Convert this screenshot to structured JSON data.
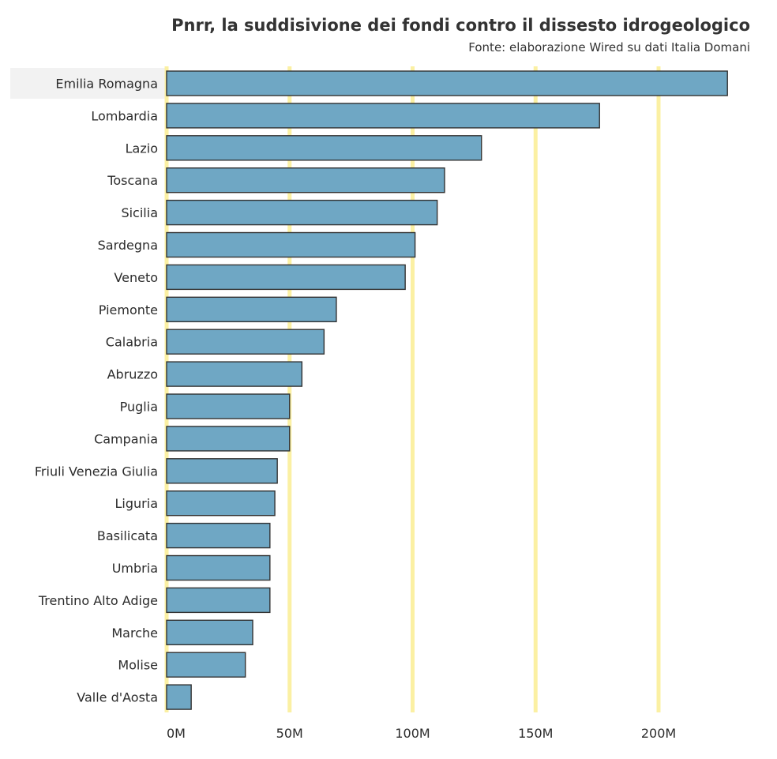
{
  "title": "Pnrr, la suddisivione dei fondi contro il dissesto idrogeologico",
  "subtitle": "Fonte: elaborazione Wired su dati Italia Domani",
  "colors": {
    "bar": "#6fa7c4",
    "bar_stroke": "#333333",
    "grid": "#fbf0a3",
    "highlight": "#f2f2f2"
  },
  "chart_data": {
    "type": "bar",
    "orientation": "horizontal",
    "title": "Pnrr, la suddisivione dei fondi contro il dissesto idrogeologico",
    "subtitle": "Fonte: elaborazione Wired su dati Italia Domani",
    "categories": [
      "Emilia Romagna",
      "Lombardia",
      "Lazio",
      "Toscana",
      "Sicilia",
      "Sardegna",
      "Veneto",
      "Piemonte",
      "Calabria",
      "Abruzzo",
      "Puglia",
      "Campania",
      "Friuli Venezia Giulia",
      "Liguria",
      "Basilicata",
      "Umbria",
      "Trentino Alto Adige",
      "Marche",
      "Molise",
      "Valle d'Aosta"
    ],
    "values": [
      228,
      176,
      128,
      113,
      110,
      101,
      97,
      69,
      64,
      55,
      50,
      50,
      45,
      44,
      42,
      42,
      42,
      35,
      32,
      10
    ],
    "unit": "M",
    "xlim": [
      0,
      228
    ],
    "x_ticks": [
      0,
      50,
      100,
      150,
      200
    ],
    "x_tick_labels": [
      "0M",
      "50M",
      "100M",
      "150M",
      "200M"
    ],
    "highlighted_category": "Emilia Romagna",
    "grid": true
  }
}
